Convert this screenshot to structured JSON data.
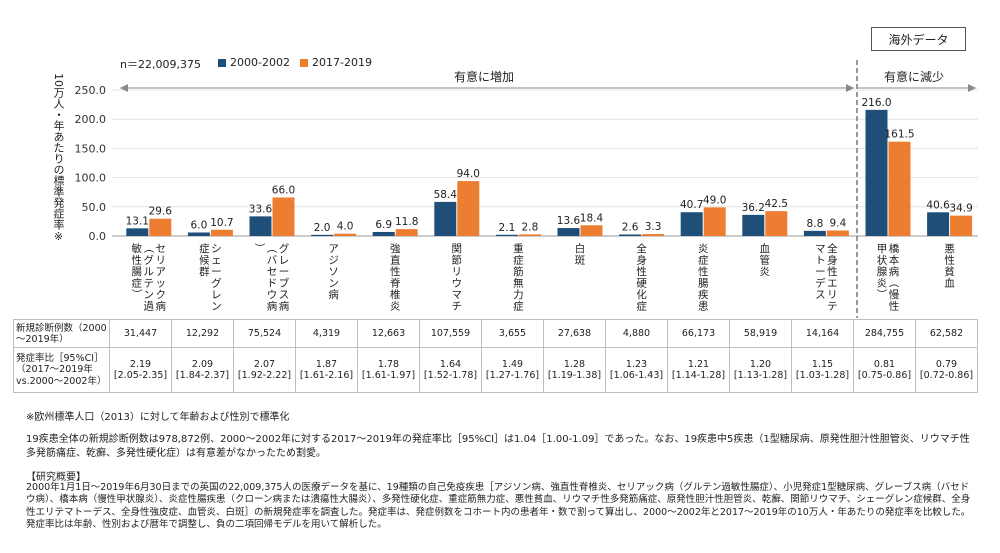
{
  "badge": "海外データ",
  "n_label": "n＝22,009,375",
  "ylabel": "10万人・年あたりの標準発症率※",
  "group_increase": "有意に増加",
  "group_decrease": "有意に減少",
  "colors": {
    "series1": "#1f4e79",
    "series2": "#ed7d31"
  },
  "chart_data": {
    "type": "bar",
    "ylim": [
      0,
      250
    ],
    "yticks": [
      "0.0",
      "50.0",
      "100.0",
      "150.0",
      "200.0",
      "250.0"
    ],
    "categories": [
      "セリアック病（グルテン過敏性腸症）",
      "シェーグレン症候群",
      "グレーブス病（バセドウ病）",
      "アジソン病",
      "強直性脊椎炎",
      "関節リウマチ",
      "重症筋無力症",
      "白斑",
      "全身性硬化症",
      "炎症性腸疾患",
      "血管炎",
      "全身性エリテマトーデス",
      "橋本病（慢性甲状腺炎）",
      "悪性貧血"
    ],
    "series": [
      {
        "name": "2000-2002",
        "values": [
          13.1,
          6.0,
          33.6,
          2.0,
          6.9,
          58.4,
          2.1,
          13.6,
          2.6,
          40.7,
          36.2,
          8.8,
          216.0,
          40.6
        ],
        "labels": [
          "13.1",
          "6.0",
          "33.6",
          "2.0",
          "6.9",
          "58.4",
          "2.1",
          "13.6",
          "2.6",
          "40.7",
          "36.2",
          "8.8",
          "216.0",
          "40.6"
        ]
      },
      {
        "name": "2017-2019",
        "values": [
          29.6,
          10.7,
          66.0,
          4.0,
          11.8,
          94.0,
          2.8,
          18.4,
          3.3,
          49.0,
          42.5,
          9.4,
          161.5,
          34.9
        ],
        "labels": [
          "29.6",
          "10.7",
          "66.0",
          "4.0",
          "11.8",
          "94.0",
          "2.8",
          "18.4",
          "3.3",
          "49.0",
          "42.5",
          "9.4",
          "161.5",
          "34.9"
        ]
      }
    ]
  },
  "table": {
    "row1_head": "新規診断例数（2000～2019年）",
    "row1": [
      "31,447",
      "12,292",
      "75,524",
      "4,319",
      "12,663",
      "107,559",
      "3,655",
      "27,638",
      "4,880",
      "66,173",
      "58,919",
      "14,164",
      "284,755",
      "62,582"
    ],
    "row2_head": "発症率比［95%CI］（2017～2019年vs.2000～2002年）",
    "row2_ratio": [
      "2.19",
      "2.09",
      "2.07",
      "1.87",
      "1.78",
      "1.64",
      "1.49",
      "1.28",
      "1.23",
      "1.21",
      "1.20",
      "1.15",
      "0.81",
      "0.79"
    ],
    "row2_ci": [
      "[2.05-2.35]",
      "[1.84-2.37]",
      "[1.92-2.22]",
      "[1.61-2.16]",
      "[1.61-1.97]",
      "[1.52-1.78]",
      "[1.27-1.76]",
      "[1.19-1.38]",
      "[1.06-1.43]",
      "[1.14-1.28]",
      "[1.13-1.28]",
      "[1.03-1.28]",
      "[0.75-0.86]",
      "[0.72-0.86]"
    ]
  },
  "footnote": "※欧州標準人口（2013）に対して年齢および性別で標準化",
  "paragraph": "19疾患全体の新規診断例数は978,872例、2000～2002年に対する2017～2019年の発症率比［95%CI］は1.04［1.00-1.09］であった。なお、19疾患中5疾患（1型糖尿病、原発性胆汁性胆管炎、リウマチ性多発筋痛症、乾癬、多発性硬化症）は有意差がなかったため割愛。",
  "summary_title": "【研究概要】",
  "summary": "2000年1月1日～2019年6月30日までの英国の22,009,375人の医療データを基に、19種類の自己免疫疾患［アジソン病、強直性脊椎炎、セリアック病（グルテン過敏性腸症）、小児発症1型糖尿病、グレーブス病（バセドウ病）、橋本病（慢性甲状腺炎）、炎症性腸疾患（クローン病または潰瘍性大腸炎）、多発性硬化症、重症筋無力症、悪性貧血、リウマチ性多発筋痛症、原発性胆汁性胆管炎、乾癬、関節リウマチ、シェーグレン症候群、全身性エリテマトーデス、全身性強皮症、血管炎、白斑］の新規発症率を調査した。発症率は、発症例数をコホート内の患者年・数で割って算出し、2000～2002年と2017～2019年の10万人・年あたりの発症率を比較した。発症率比は年齢、性別および暦年で調整し、負の二項回帰モデルを用いて解析した。"
}
